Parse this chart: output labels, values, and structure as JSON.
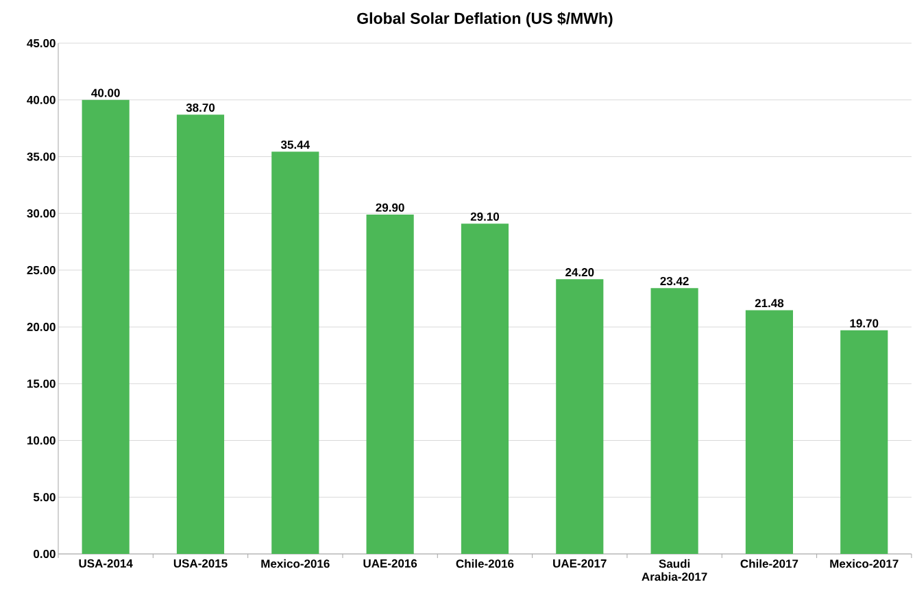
{
  "chart_data": {
    "type": "bar",
    "title": "Global Solar Deflation (US $/MWh)",
    "categories": [
      "USA-2014",
      "USA-2015",
      "Mexico-2016",
      "UAE-2016",
      "Chile-2016",
      "UAE-2017",
      "Saudi Arabia-2017",
      "Chile-2017",
      "Mexico-2017"
    ],
    "values": [
      40.0,
      38.7,
      35.44,
      29.9,
      29.1,
      24.2,
      23.42,
      21.48,
      19.7
    ],
    "value_labels": [
      "40.00",
      "38.70",
      "35.44",
      "29.90",
      "29.10",
      "24.20",
      "23.42",
      "21.48",
      "19.70"
    ],
    "color": "#4cb857",
    "ylim": [
      0,
      45
    ],
    "yticks": [
      {
        "value": 0,
        "label": "0.00"
      },
      {
        "value": 5,
        "label": "5.00"
      },
      {
        "value": 10,
        "label": "10.00"
      },
      {
        "value": 15,
        "label": "15.00"
      },
      {
        "value": 20,
        "label": "20.00"
      },
      {
        "value": 25,
        "label": "25.00"
      },
      {
        "value": 30,
        "label": "30.00"
      },
      {
        "value": 35,
        "label": "35.00"
      },
      {
        "value": 40,
        "label": "40.00"
      },
      {
        "value": 45,
        "label": "45.00"
      }
    ],
    "grid": "y"
  }
}
